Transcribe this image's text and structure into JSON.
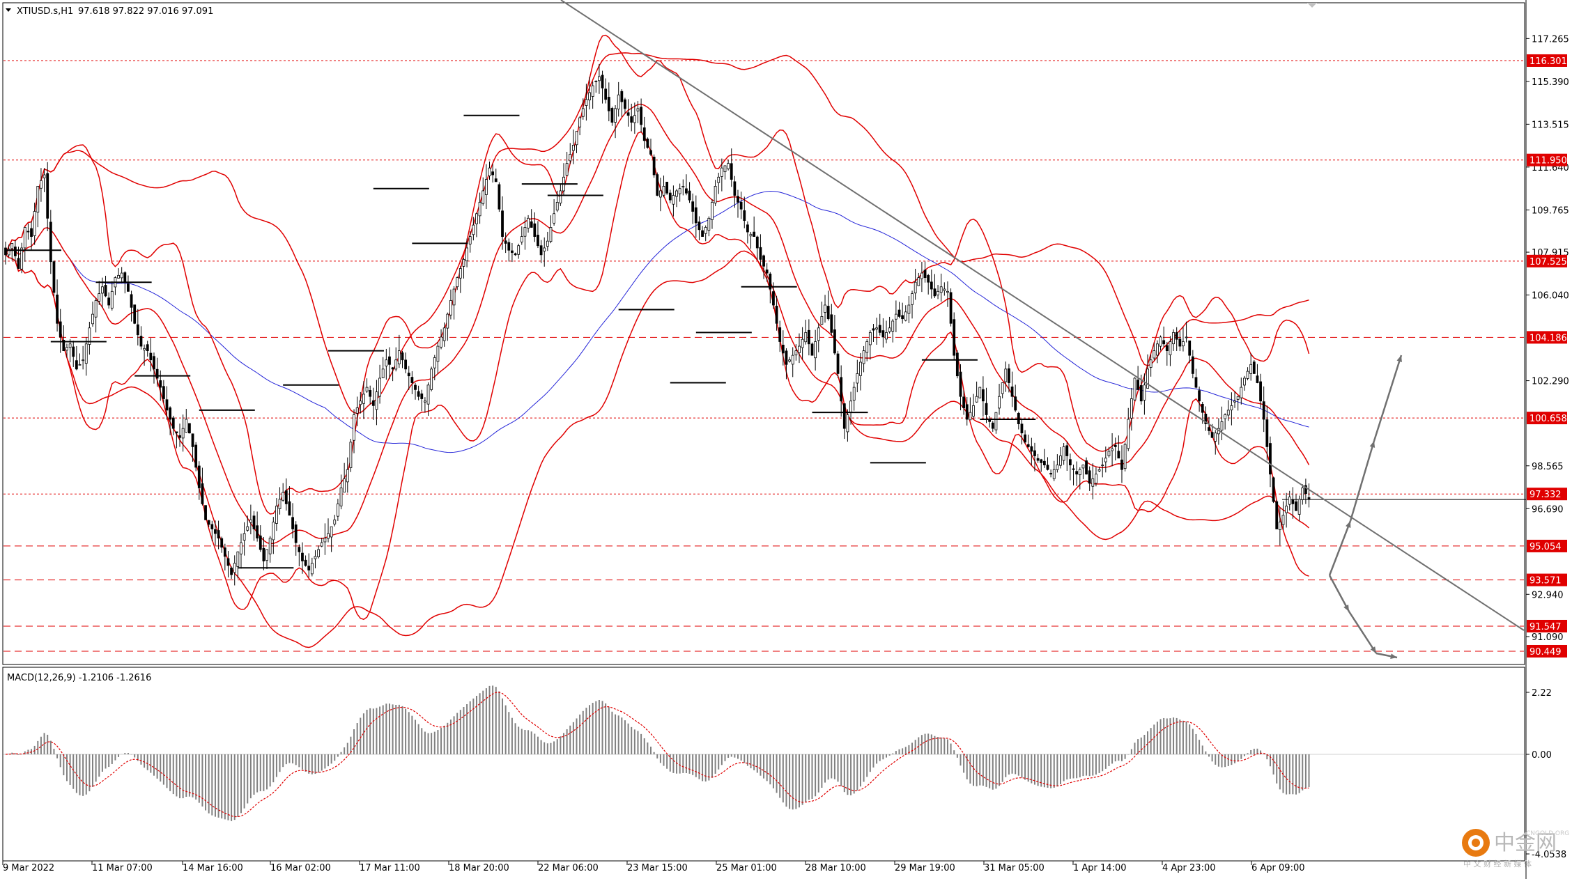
{
  "symbol_header": {
    "symbol": "XTIUSD.s,H1",
    "ohlc": "97.618 97.822 97.016 97.091"
  },
  "macd_header": "MACD(12,26,9) -1.2106 -1.2616",
  "watermark": {
    "brand": "中金网",
    "url": "CNGOLD.ORG",
    "tagline": "中 文 财 经 新 媒 体"
  },
  "colors": {
    "background": "#ffffff",
    "bollinger": "#e00000",
    "ma_blue": "#2424d8",
    "trendline": "#707070",
    "level_red": "#e00000",
    "tag_bg": "#e00000",
    "candle": "#000000",
    "macd_hist": "#808080",
    "macd_signal": "#e00000"
  },
  "chart_data": {
    "type": "candlestick",
    "title": "XTIUSD.s,H1",
    "price_axis": {
      "ticks": [
        "117.265",
        "115.390",
        "113.515",
        "111.640",
        "109.765",
        "107.915",
        "106.040",
        "102.290",
        "98.565",
        "96.690",
        "92.940",
        "91.090"
      ],
      "ylim": [
        89.9,
        118.8
      ]
    },
    "time_axis_labels": [
      "9 Mar 2022",
      "11 Mar 07:00",
      "14 Mar 16:00",
      "16 Mar 02:00",
      "17 Mar 11:00",
      "18 Mar 20:00",
      "22 Mar 06:00",
      "23 Mar 15:00",
      "25 Mar 01:00",
      "28 Mar 10:00",
      "29 Mar 19:00",
      "31 Mar 05:00",
      "1 Apr 14:00",
      "4 Apr 23:00",
      "6 Apr 09:00"
    ],
    "price_tags": [
      {
        "value": 116.301,
        "label": "116.301",
        "style": "dotted"
      },
      {
        "value": 111.95,
        "label": "111.950",
        "style": "dotted"
      },
      {
        "value": 107.525,
        "label": "107.525",
        "style": "dotted"
      },
      {
        "value": 104.186,
        "label": "104.186",
        "style": "dashed"
      },
      {
        "value": 100.658,
        "label": "100.658",
        "style": "dotted"
      },
      {
        "value": 97.332,
        "label": "97.332",
        "style": "dotted"
      },
      {
        "value": 95.054,
        "label": "95.054",
        "style": "dashed"
      },
      {
        "value": 93.571,
        "label": "93.571",
        "style": "dashed"
      },
      {
        "value": 91.547,
        "label": "91.547",
        "style": "dashed"
      },
      {
        "value": 90.449,
        "label": "90.449",
        "style": "dashed"
      }
    ],
    "current_price": 97.091,
    "close_path": [
      [
        0,
        107.8
      ],
      [
        2,
        108.3
      ],
      [
        4,
        107.2
      ],
      [
        6,
        109.0
      ],
      [
        8,
        108.6
      ],
      [
        10,
        110.8
      ],
      [
        12,
        111.3
      ],
      [
        14,
        107.5
      ],
      [
        16,
        104.8
      ],
      [
        18,
        103.6
      ],
      [
        20,
        103.9
      ],
      [
        22,
        102.8
      ],
      [
        24,
        103.2
      ],
      [
        26,
        104.6
      ],
      [
        28,
        105.8
      ],
      [
        30,
        106.4
      ],
      [
        32,
        105.6
      ],
      [
        34,
        106.8
      ],
      [
        36,
        107.0
      ],
      [
        38,
        106.2
      ],
      [
        40,
        104.8
      ],
      [
        42,
        103.8
      ],
      [
        44,
        103.6
      ],
      [
        46,
        102.8
      ],
      [
        48,
        102.0
      ],
      [
        50,
        101.0
      ],
      [
        52,
        100.2
      ],
      [
        54,
        99.8
      ],
      [
        56,
        100.6
      ],
      [
        58,
        99.4
      ],
      [
        60,
        97.6
      ],
      [
        62,
        96.2
      ],
      [
        64,
        95.8
      ],
      [
        66,
        95.4
      ],
      [
        68,
        94.6
      ],
      [
        70,
        93.8
      ],
      [
        72,
        94.8
      ],
      [
        74,
        95.6
      ],
      [
        76,
        96.2
      ],
      [
        78,
        95.4
      ],
      [
        80,
        94.4
      ],
      [
        82,
        95.4
      ],
      [
        84,
        96.8
      ],
      [
        86,
        97.4
      ],
      [
        88,
        96.4
      ],
      [
        90,
        95.2
      ],
      [
        92,
        94.4
      ],
      [
        94,
        94.0
      ],
      [
        96,
        94.6
      ],
      [
        98,
        95.2
      ],
      [
        100,
        95.6
      ],
      [
        102,
        96.2
      ],
      [
        104,
        97.6
      ],
      [
        106,
        98.4
      ],
      [
        108,
        100.8
      ],
      [
        110,
        101.4
      ],
      [
        112,
        102.0
      ],
      [
        114,
        101.2
      ],
      [
        116,
        102.4
      ],
      [
        118,
        103.2
      ],
      [
        120,
        102.8
      ],
      [
        122,
        103.6
      ],
      [
        124,
        102.8
      ],
      [
        126,
        102.2
      ],
      [
        128,
        101.6
      ],
      [
        130,
        101.4
      ],
      [
        132,
        102.8
      ],
      [
        134,
        103.8
      ],
      [
        136,
        104.6
      ],
      [
        138,
        105.8
      ],
      [
        140,
        106.8
      ],
      [
        142,
        107.6
      ],
      [
        144,
        108.6
      ],
      [
        146,
        109.6
      ],
      [
        148,
        110.6
      ],
      [
        150,
        111.6
      ],
      [
        152,
        111.0
      ],
      [
        154,
        108.6
      ],
      [
        156,
        108.0
      ],
      [
        158,
        107.8
      ],
      [
        160,
        108.6
      ],
      [
        162,
        109.4
      ],
      [
        164,
        108.6
      ],
      [
        166,
        107.8
      ],
      [
        168,
        108.4
      ],
      [
        170,
        109.6
      ],
      [
        172,
        110.6
      ],
      [
        174,
        111.8
      ],
      [
        176,
        112.6
      ],
      [
        178,
        113.8
      ],
      [
        180,
        114.6
      ],
      [
        182,
        115.2
      ],
      [
        184,
        115.6
      ],
      [
        186,
        114.6
      ],
      [
        188,
        113.6
      ],
      [
        190,
        114.8
      ],
      [
        192,
        114.2
      ],
      [
        194,
        113.6
      ],
      [
        196,
        114.2
      ],
      [
        198,
        112.8
      ],
      [
        200,
        112.2
      ],
      [
        202,
        110.4
      ],
      [
        204,
        110.8
      ],
      [
        206,
        110.2
      ],
      [
        208,
        110.6
      ],
      [
        210,
        110.8
      ],
      [
        212,
        110.2
      ],
      [
        214,
        109.2
      ],
      [
        216,
        108.6
      ],
      [
        218,
        109.4
      ],
      [
        220,
        110.8
      ],
      [
        222,
        111.6
      ],
      [
        224,
        111.8
      ],
      [
        226,
        110.4
      ],
      [
        228,
        109.8
      ],
      [
        230,
        108.8
      ],
      [
        232,
        108.6
      ],
      [
        234,
        107.6
      ],
      [
        236,
        107.0
      ],
      [
        238,
        105.6
      ],
      [
        240,
        104.0
      ],
      [
        242,
        103.0
      ],
      [
        244,
        103.4
      ],
      [
        246,
        103.8
      ],
      [
        248,
        104.4
      ],
      [
        250,
        103.4
      ],
      [
        252,
        104.6
      ],
      [
        254,
        105.6
      ],
      [
        256,
        104.4
      ],
      [
        258,
        102.6
      ],
      [
        260,
        100.2
      ],
      [
        262,
        101.4
      ],
      [
        264,
        102.6
      ],
      [
        266,
        103.6
      ],
      [
        268,
        104.4
      ],
      [
        270,
        104.6
      ],
      [
        272,
        104.2
      ],
      [
        274,
        104.6
      ],
      [
        276,
        105.2
      ],
      [
        278,
        105.0
      ],
      [
        280,
        105.6
      ],
      [
        282,
        106.6
      ],
      [
        284,
        107.0
      ],
      [
        286,
        106.6
      ],
      [
        288,
        106.0
      ],
      [
        290,
        106.4
      ],
      [
        292,
        106.2
      ],
      [
        294,
        103.4
      ],
      [
        296,
        101.6
      ],
      [
        298,
        100.6
      ],
      [
        300,
        101.2
      ],
      [
        302,
        102.0
      ],
      [
        304,
        100.8
      ],
      [
        306,
        100.2
      ],
      [
        308,
        101.6
      ],
      [
        310,
        102.8
      ],
      [
        312,
        101.6
      ],
      [
        314,
        100.4
      ],
      [
        316,
        99.6
      ],
      [
        318,
        99.2
      ],
      [
        320,
        98.8
      ],
      [
        322,
        98.6
      ],
      [
        324,
        98.2
      ],
      [
        326,
        98.6
      ],
      [
        328,
        99.4
      ],
      [
        330,
        98.6
      ],
      [
        332,
        98.2
      ],
      [
        334,
        98.6
      ],
      [
        336,
        97.8
      ],
      [
        338,
        98.2
      ],
      [
        340,
        98.6
      ],
      [
        342,
        99.2
      ],
      [
        344,
        99.4
      ],
      [
        346,
        98.4
      ],
      [
        348,
        100.6
      ],
      [
        350,
        102.4
      ],
      [
        352,
        101.4
      ],
      [
        354,
        102.8
      ],
      [
        356,
        103.6
      ],
      [
        358,
        104.2
      ],
      [
        360,
        103.6
      ],
      [
        362,
        104.4
      ],
      [
        364,
        103.8
      ],
      [
        366,
        104.2
      ],
      [
        368,
        102.6
      ],
      [
        370,
        101.4
      ],
      [
        372,
        100.4
      ],
      [
        374,
        99.8
      ],
      [
        376,
        100.2
      ],
      [
        378,
        100.8
      ],
      [
        380,
        101.2
      ],
      [
        382,
        101.6
      ],
      [
        384,
        102.4
      ],
      [
        386,
        103.0
      ],
      [
        388,
        102.2
      ],
      [
        390,
        100.6
      ],
      [
        392,
        98.2
      ],
      [
        394,
        95.8
      ],
      [
        396,
        96.4
      ],
      [
        398,
        97.2
      ],
      [
        400,
        96.6
      ],
      [
        402,
        97.6
      ],
      [
        404,
        97.1
      ]
    ]
  }
}
